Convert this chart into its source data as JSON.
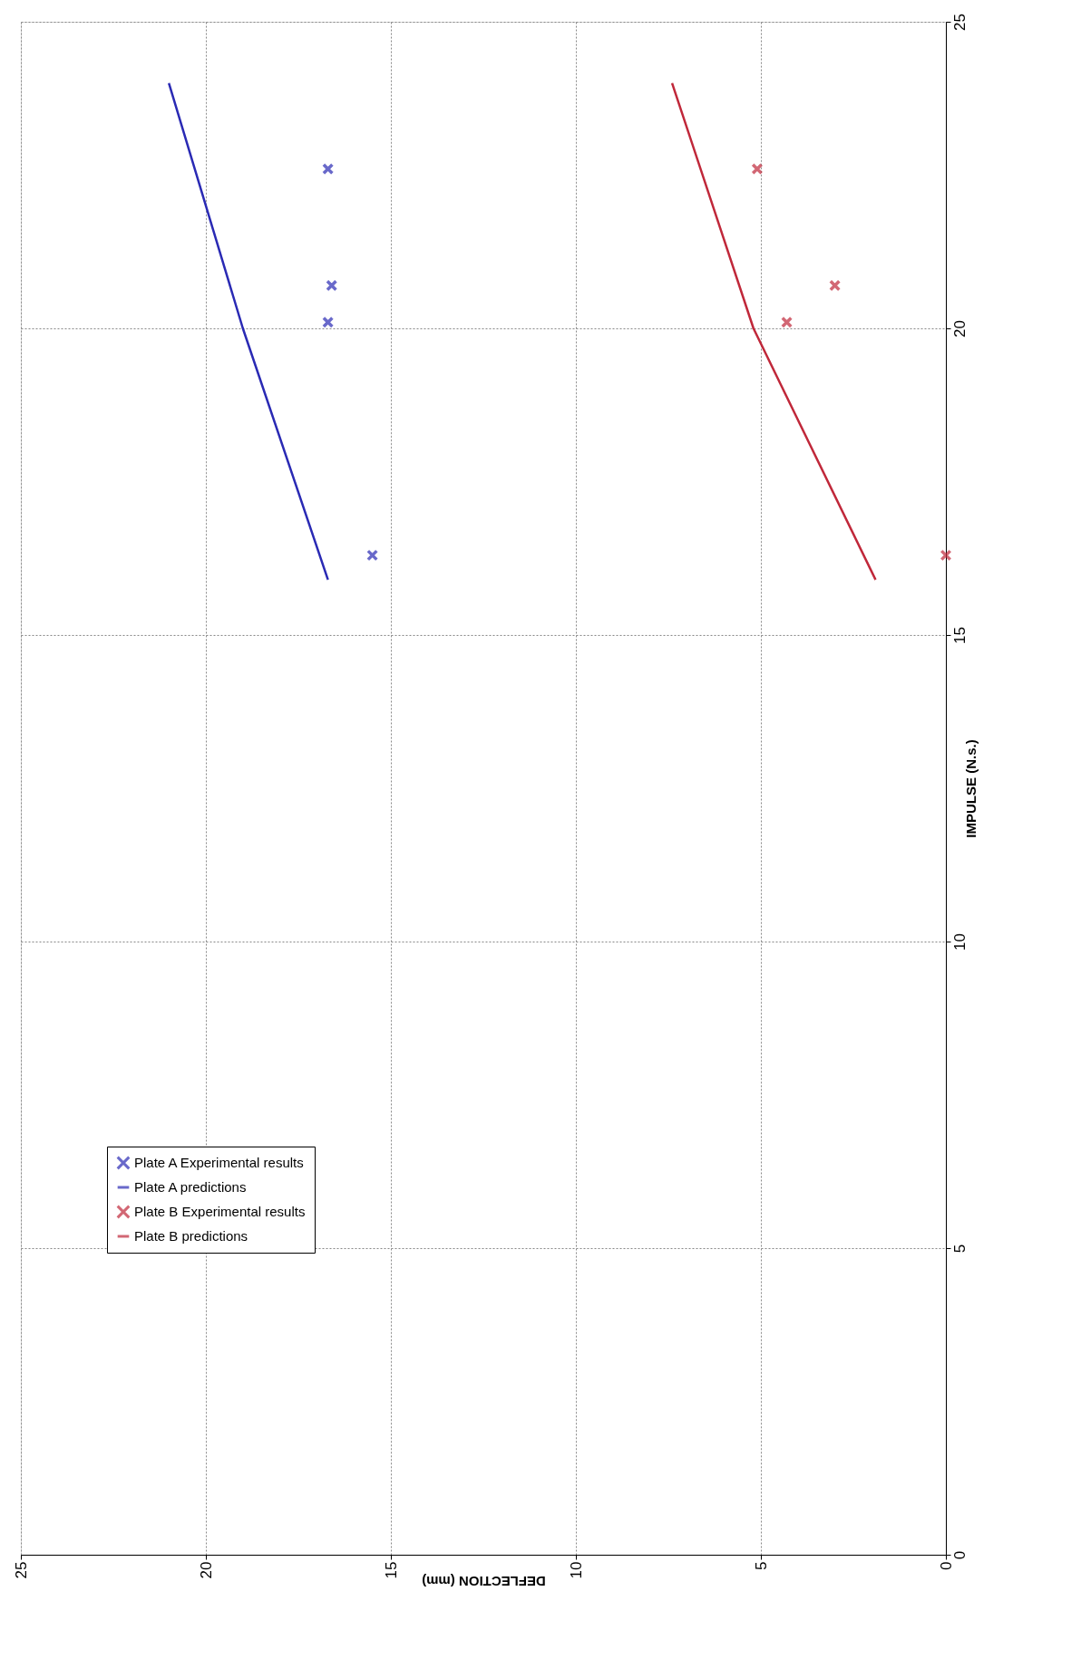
{
  "chart_data": {
    "type": "scatter",
    "xlabel": "DEFLECTION (mm)",
    "ylabel": "IMPULSE (N.s.)",
    "xlim": [
      25,
      0
    ],
    "ylim": [
      0,
      25
    ],
    "xticks": [
      0,
      5,
      10,
      15,
      20,
      25
    ],
    "yticks": [
      0,
      5,
      10,
      15,
      20,
      25
    ],
    "grid": true,
    "legend": "bottom left",
    "series": [
      {
        "name": "Plate A Experimental results",
        "marker": "cross",
        "color": "#2a2ab4",
        "x": [
          15.5,
          16.7,
          16.6,
          16.7
        ],
        "values": [
          16.3,
          20.1,
          20.7,
          22.6
        ]
      },
      {
        "name": "Plate A predictions",
        "type": "line",
        "marker": "none",
        "color": "#2a2ab4",
        "x": [
          16.7,
          19.0,
          21.0
        ],
        "values": [
          15.9,
          20.0,
          24.0
        ]
      },
      {
        "name": "Plate B Experimental results",
        "marker": "cross",
        "color": "#c0283a",
        "x": [
          0.0,
          4.3,
          3.0,
          5.1
        ],
        "values": [
          16.3,
          20.1,
          20.7,
          22.6
        ]
      },
      {
        "name": "Plate B predictions",
        "type": "line",
        "marker": "none",
        "color": "#c0283a",
        "x": [
          1.9,
          5.2,
          7.4
        ],
        "values": [
          15.9,
          20.0,
          24.0
        ]
      }
    ]
  }
}
